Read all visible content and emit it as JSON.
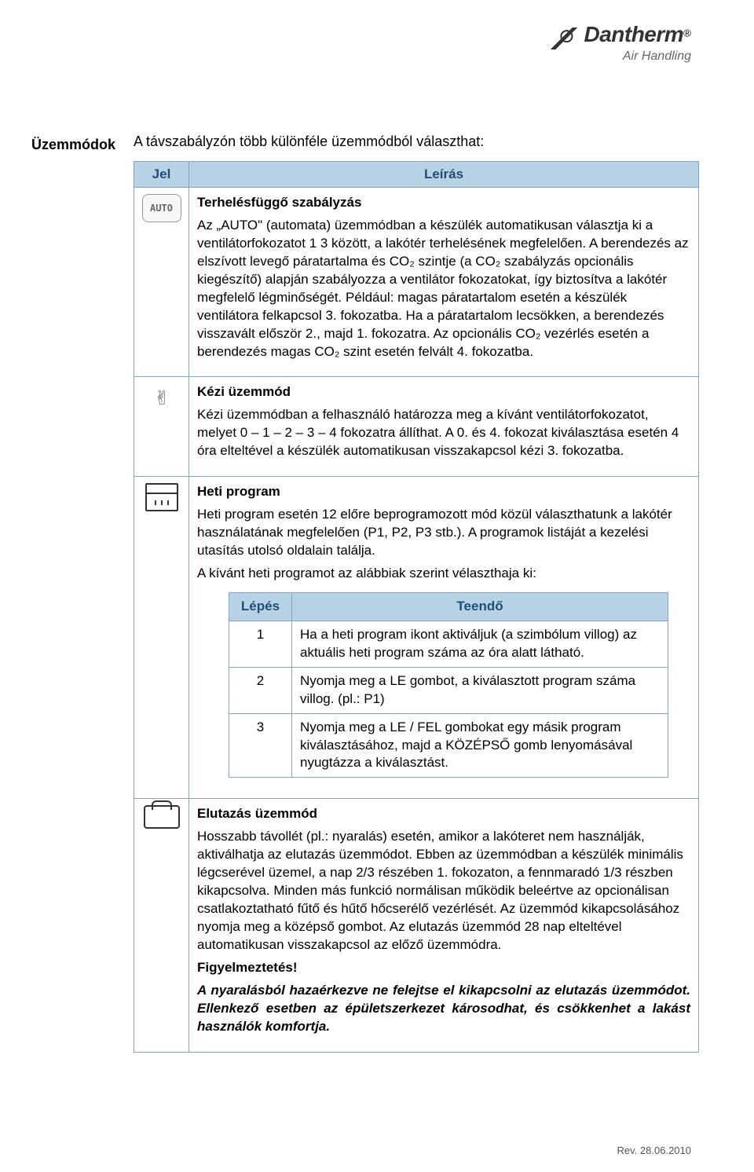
{
  "brand": {
    "name": "Dantherm",
    "tagline": "Air Handling",
    "reg": "®"
  },
  "section_heading": "Üzemmódok",
  "intro_text": "A távszabályzón több különféle üzemmódból választhat:",
  "main_table": {
    "col_icon": "Jel",
    "col_desc": "Leírás"
  },
  "row_auto": {
    "title": "Terhelésfüggő szabályzás",
    "body": "Az „AUTO\" (automata) üzemmódban a készülék automatikusan választja ki a ventilátorfokozatot 1  3 között, a lakótér terhelésének megfelelően. A berendezés az elszívott levegő páratartalma és CO₂ szintje (a CO₂ szabályzás opcionális kiegészítő) alapján szabályozza a ventilátor fokozatokat, így biztosítva a lakótér megfelelő légminőségét. Például: magas páratartalom esetén a készülék ventilátora felkapcsol 3. fokozatba. Ha a páratartalom lecsökken, a berendezés visszavált először 2., majd 1. fokozatra. Az opcionális CO₂ vezérlés esetén a berendezés magas CO₂ szint esetén felvált 4. fokozatba."
  },
  "row_manual": {
    "title": "Kézi üzemmód",
    "body": "Kézi üzemmódban a felhasználó határozza meg a kívánt ventilátorfokozatot, melyet 0 – 1 – 2 – 3 – 4 fokozatra állíthat. A 0. és 4. fokozat kiválasztása esetén 4 óra elteltével a készülék automatikusan visszakapcsol kézi 3. fokozatba."
  },
  "row_weekly": {
    "title": "Heti program",
    "body1": "Heti program esetén 12 előre beprogramozott mód közül választhatunk a lakótér használatának megfelelően (P1, P2, P3 stb.). A programok listáját a kezelési utasítás utolsó oldalain találja.",
    "body2": "A kívánt heti programot az alábbiak szerint vélaszthaja ki:"
  },
  "inner_table": {
    "col_step": "Lépés",
    "col_action": "Teendő",
    "rows": [
      {
        "n": "1",
        "text": "Ha a heti program ikont aktiváljuk (a szimbólum villog) az aktuális heti program száma az óra alatt látható."
      },
      {
        "n": "2",
        "text": "Nyomja meg a LE gombot, a kiválasztott program száma villog. (pl.: P1)"
      },
      {
        "n": "3",
        "text": "Nyomja meg a LE / FEL gombokat egy másik program kiválasztásához, majd a KÖZÉPSŐ gomb lenyomásával nyugtázza a kiválasztást."
      }
    ]
  },
  "row_away": {
    "title": "Elutazás üzemmód",
    "body": "Hosszabb távollét (pl.: nyaralás) esetén, amikor a lakóteret nem használják, aktiválhatja az elutazás üzemmódot. Ebben az üzemmódban a készülék minimális légcserével üzemel, a nap 2/3 részében 1. fokozaton, a fennmaradó 1/3 részben kikapcsolva. Minden más funkció normálisan működik beleértve az opcionálisan csatlakoztatható fűtő és hűtő hőcserélő vezérlését. Az üzemmód kikapcsolásához nyomja meg a középső gombot. Az elutazás üzemmód 28 nap elteltével automatikusan visszakapcsol az előző üzemmódra.",
    "warn_label": "Figyelmeztetés!",
    "warn_body": "A nyaralásból hazaérkezve ne felejtse el kikapcsolni az elutazás üzemmódot. Ellenkező esetben az épületszerkezet károsodhat, és csökkenhet a lakást használók komfortja."
  },
  "footer_text": "Rev. 28.06.2010"
}
